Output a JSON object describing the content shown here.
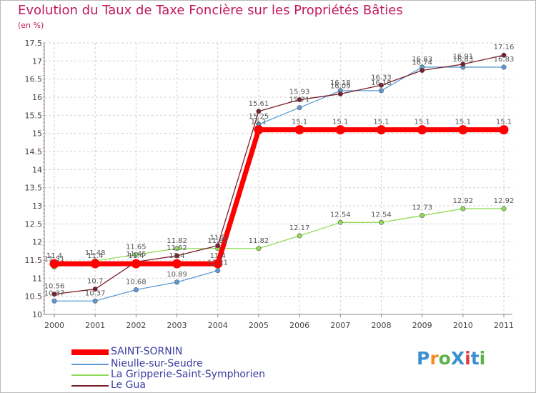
{
  "title": "Evolution du Taux de Taxe Foncière sur les Propriétés Bâties",
  "unit_label": "(en %)",
  "logo": {
    "text": "ProXiti",
    "colors": [
      "#3b8fd0",
      "#f08c2a",
      "#5bb24a",
      "#3b8fd0",
      "#e23b3b",
      "#3b8fd0",
      "#5bb24a"
    ]
  },
  "chart_data": {
    "type": "line",
    "title": "Evolution du Taux de Taxe Foncière sur les Propriétés Bâties",
    "ylabel": "(en %)",
    "xlabel": "",
    "x": [
      "2000",
      "2001",
      "2002",
      "2003",
      "2004",
      "2005",
      "2006",
      "2007",
      "2008",
      "2009",
      "2010",
      "2011"
    ],
    "ylim": [
      10,
      17.5
    ],
    "yticks": [
      "10",
      "10.5",
      "11",
      "11.5",
      "12",
      "12.5",
      "13",
      "13.5",
      "14",
      "14.5",
      "15",
      "15.5",
      "16",
      "16.5",
      "17",
      "17.5"
    ],
    "grid": true,
    "legend_position": "bottom-left",
    "series": [
      {
        "name": "SAINT-SORNIN",
        "color": "#ff0000",
        "values": [
          11.4,
          11.4,
          11.4,
          11.4,
          11.4,
          15.1,
          15.1,
          15.1,
          15.1,
          15.1,
          15.1,
          15.1
        ],
        "labels": [
          "11.4",
          "11.4",
          "11.4",
          "11.4",
          "11.4",
          "15.1",
          "15.1",
          "15.1",
          "15.1",
          "15.1",
          "15.1",
          "15.1"
        ]
      },
      {
        "name": "Nieulle-sur-Seudre",
        "color": "#5b9bd5",
        "values": [
          10.37,
          10.37,
          10.68,
          10.89,
          11.21,
          15.25,
          15.71,
          16.18,
          16.18,
          16.83,
          16.83,
          16.83
        ],
        "labels": [
          "10.37",
          "10.37",
          "10.68",
          "10.89",
          "11.21",
          "15.25",
          "15.71",
          "16.18",
          "16.18",
          "16.83",
          "16.83",
          "16.83"
        ]
      },
      {
        "name": "La Gripperie-Saint-Symphorien",
        "color": "#90dd5a",
        "values": [
          11.31,
          11.48,
          11.65,
          11.82,
          11.82,
          11.82,
          12.17,
          12.54,
          12.54,
          12.73,
          12.92,
          12.92
        ],
        "labels": [
          "11.31",
          "11.48",
          "11.65",
          "11.82",
          "11.82",
          "11.82",
          "12.17",
          "12.54",
          "12.54",
          "12.73",
          "12.92",
          "12.92"
        ]
      },
      {
        "name": "Le Gua",
        "color": "#7a1f2b",
        "values": [
          10.56,
          10.7,
          11.45,
          11.62,
          11.9,
          15.61,
          15.93,
          16.09,
          16.33,
          16.74,
          16.91,
          17.16
        ],
        "labels": [
          "10.56",
          "10.7",
          "11.45",
          "11.62",
          "11.9",
          "15.61",
          "15.93",
          "16.09",
          "16.33",
          "16.74",
          "16.91",
          "17.16"
        ]
      }
    ]
  }
}
